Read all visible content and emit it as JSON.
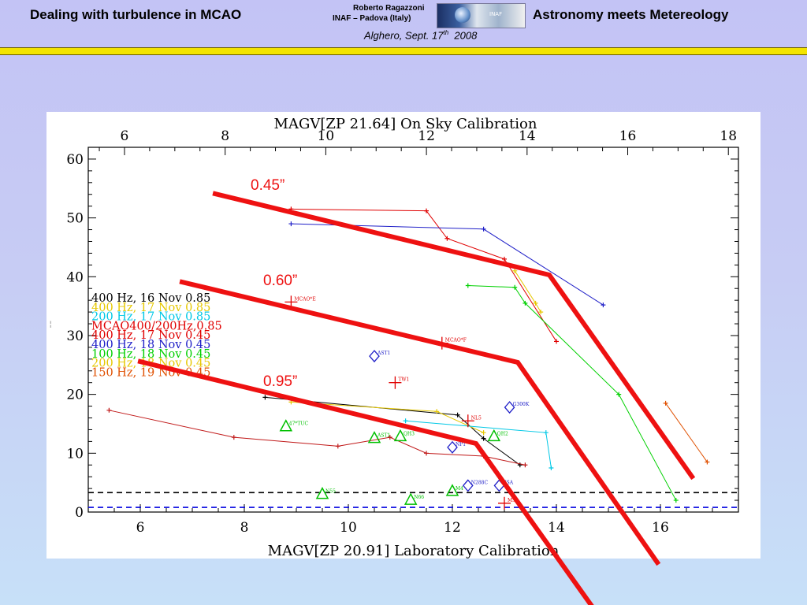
{
  "header": {
    "left_title": "Dealing with turbulence in MCAO",
    "author": "Roberto Ragazzoni",
    "affiliation": "INAF – Padova (Italy)",
    "date_prefix": "Alghero, Sept. 17",
    "date_sup": "th",
    "date_year": "2008",
    "right_title": "Astronomy meets Metereology",
    "logo_text": "INAF"
  },
  "chart_data": {
    "type": "scatter",
    "title": "MAGV[ZP 21.64] On Sky Calibration",
    "xlabel": "MAGV[ZP 20.91] Laboratory Calibration",
    "ylabel": "",
    "xlim": [
      5.0,
      17.5
    ],
    "ylim": [
      0,
      62
    ],
    "top_axis": {
      "label": "MAGV[ZP 21.64] On Sky Calibration",
      "ticks": [
        "6",
        "8",
        "10",
        "12",
        "14",
        "16",
        "18"
      ],
      "values": [
        6,
        8,
        10,
        12,
        14,
        16,
        18
      ],
      "xlim": [
        5.28,
        18.2
      ]
    },
    "x_ticks": [
      "6",
      "8",
      "10",
      "12",
      "14",
      "16"
    ],
    "y_ticks": [
      "0",
      "10",
      "20",
      "30",
      "40",
      "50",
      "60"
    ],
    "grid": false,
    "legend_position": "left",
    "legend": [
      {
        "label": "400 Hz, 16 Nov 0.85",
        "color": "#000000"
      },
      {
        "label": "400 Hz, 17 Nov 0.85",
        "color": "#e6c800"
      },
      {
        "label": "200 Hz, 17 Nov 0.85",
        "color": "#00c8e6"
      },
      {
        "label": "MCAO400/200Hz,0.85",
        "color": "#e00000"
      },
      {
        "label": "400 Hz, 17 Nov 0.45",
        "color": "#e00000"
      },
      {
        "label": "400 Hz, 18 Nov 0.45",
        "color": "#2020c8"
      },
      {
        "label": "100 Hz, 18 Nov 0.45",
        "color": "#00d000"
      },
      {
        "label": "200 Hz, 18 Nov 0.45",
        "color": "#e6c800"
      },
      {
        "label": "150 Hz, 19 Nov 0.45",
        "color": "#e05000"
      }
    ],
    "series": [
      {
        "color": "#000000",
        "points": [
          [
            8.4,
            19.5
          ],
          [
            12.1,
            16.5
          ],
          [
            12.6,
            12.5
          ],
          [
            13.3,
            8
          ]
        ]
      },
      {
        "color": "#e6c800",
        "points": [
          [
            8.9,
            18.7
          ],
          [
            11.7,
            17.1
          ],
          [
            12.6,
            13.5
          ]
        ]
      },
      {
        "color": "#00c8e6",
        "points": [
          [
            11.1,
            15.5
          ],
          [
            13.8,
            13.5
          ],
          [
            13.9,
            7.5
          ]
        ]
      },
      {
        "color": "#e00000",
        "points": [
          [
            8.9,
            51.5
          ],
          [
            11.5,
            51.2
          ],
          [
            11.9,
            46.5
          ],
          [
            13.0,
            43.0
          ],
          [
            14.0,
            29.0
          ]
        ]
      },
      {
        "color": "#2020c8",
        "points": [
          [
            8.9,
            49.0
          ],
          [
            12.6,
            48.1
          ],
          [
            14.9,
            35.2
          ]
        ]
      },
      {
        "color": "#00d000",
        "points": [
          [
            12.3,
            38.5
          ],
          [
            13.2,
            38.2
          ],
          [
            13.4,
            35.5
          ],
          [
            15.2,
            20.0
          ],
          [
            16.3,
            2.0
          ]
        ]
      },
      {
        "color": "#e6c800",
        "points": [
          [
            13.2,
            41.0
          ],
          [
            13.6,
            35.5
          ],
          [
            13.7,
            34.0
          ]
        ]
      },
      {
        "color": "#e05000",
        "points": [
          [
            16.1,
            18.5
          ],
          [
            16.9,
            8.5
          ]
        ]
      },
      {
        "color": "#c01818",
        "points": [
          [
            5.4,
            17.3
          ],
          [
            7.8,
            12.7
          ],
          [
            9.8,
            11.2
          ],
          [
            10.8,
            12.7
          ],
          [
            11.5,
            10.0
          ],
          [
            12.6,
            9.5
          ],
          [
            13.4,
            8.0
          ]
        ]
      }
    ],
    "labeled_points": [
      {
        "x": 8.9,
        "y": 35.7,
        "label": "MCAO*E",
        "marker": "plus",
        "color": "#e00000"
      },
      {
        "x": 10.9,
        "y": 22.0,
        "label": "TW1",
        "marker": "plus",
        "color": "#e00000"
      },
      {
        "x": 11.8,
        "y": 28.7,
        "label": "MCAO*F",
        "marker": "plus",
        "color": "#e00000"
      },
      {
        "x": 12.3,
        "y": 15.5,
        "label": "NL5",
        "marker": "plus",
        "color": "#e00000"
      },
      {
        "x": 10.5,
        "y": 26.5,
        "label": "AST1",
        "marker": "diamond",
        "color": "#2020c8"
      },
      {
        "x": 12.0,
        "y": 11.0,
        "label": "NP1",
        "marker": "diamond",
        "color": "#2020c8"
      },
      {
        "x": 13.1,
        "y": 17.8,
        "label": "G300K",
        "marker": "diamond",
        "color": "#2020c8"
      },
      {
        "x": 12.3,
        "y": 4.5,
        "label": "N288C",
        "marker": "diamond",
        "color": "#2020c8"
      },
      {
        "x": 12.9,
        "y": 4.5,
        "label": "NSA",
        "marker": "diamond",
        "color": "#2020c8"
      },
      {
        "x": 8.8,
        "y": 14.5,
        "label": "47*TUC",
        "marker": "triangle",
        "color": "#00c000"
      },
      {
        "x": 10.5,
        "y": 12.5,
        "label": "AST1",
        "marker": "triangle",
        "color": "#00c000"
      },
      {
        "x": 11.0,
        "y": 12.8,
        "label": "QH3",
        "marker": "triangle",
        "color": "#00c000"
      },
      {
        "x": 12.8,
        "y": 12.8,
        "label": "QH2",
        "marker": "triangle",
        "color": "#00c000"
      },
      {
        "x": 9.5,
        "y": 3.0,
        "label": "N55",
        "marker": "triangle",
        "color": "#00c000"
      },
      {
        "x": 11.2,
        "y": 2.0,
        "label": "N66",
        "marker": "triangle",
        "color": "#00c000"
      },
      {
        "x": 12.0,
        "y": 3.5,
        "label": "M4",
        "marker": "triangle",
        "color": "#00c000"
      },
      {
        "x": 13.0,
        "y": 1.5,
        "label": "M3",
        "marker": "plus",
        "color": "#e00000"
      }
    ],
    "hlines": [
      {
        "y": 3.3,
        "color": "#000000",
        "style": "dashed"
      },
      {
        "y": 0.8,
        "color": "#0000e0",
        "style": "dashed"
      }
    ]
  },
  "overlay": {
    "labels": [
      "0.45”",
      "0.60”",
      "0.95”"
    ],
    "color": "#ee1111"
  }
}
